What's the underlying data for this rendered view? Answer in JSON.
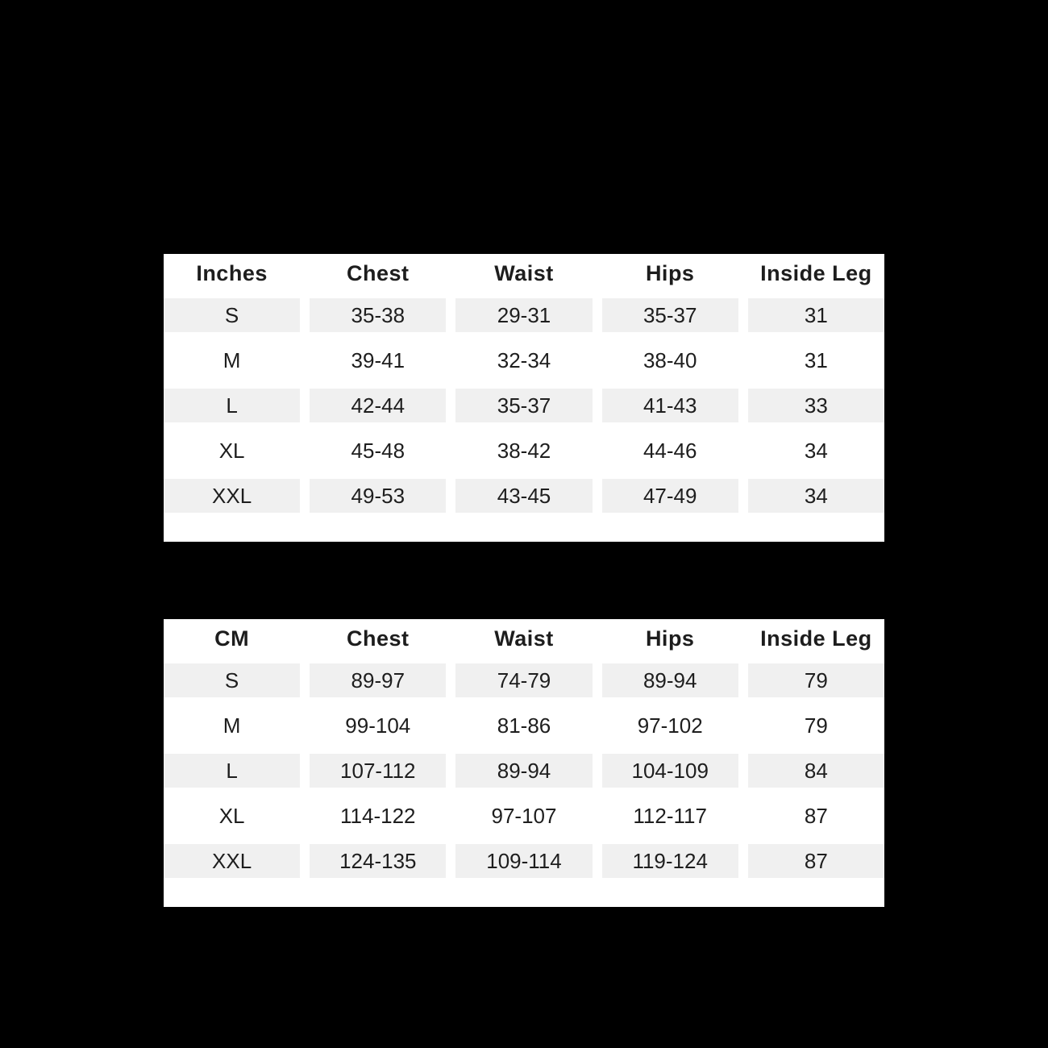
{
  "colors": {
    "page_background": "#000000",
    "table_background": "#ffffff",
    "stripe": "#f0f0f0",
    "text": "#1e1e1e"
  },
  "tables": [
    {
      "unit": "Inches",
      "headers": [
        "Inches",
        "Chest",
        "Waist",
        "Hips",
        "Inside Leg"
      ],
      "rows": [
        {
          "size": "S",
          "chest": "35-38",
          "waist": "29-31",
          "hips": "35-37",
          "inside_leg": "31"
        },
        {
          "size": "M",
          "chest": "39-41",
          "waist": "32-34",
          "hips": "38-40",
          "inside_leg": "31"
        },
        {
          "size": "L",
          "chest": "42-44",
          "waist": "35-37",
          "hips": "41-43",
          "inside_leg": "33"
        },
        {
          "size": "XL",
          "chest": "45-48",
          "waist": "38-42",
          "hips": "44-46",
          "inside_leg": "34"
        },
        {
          "size": "XXL",
          "chest": "49-53",
          "waist": "43-45",
          "hips": "47-49",
          "inside_leg": "34"
        }
      ]
    },
    {
      "unit": "CM",
      "headers": [
        "CM",
        "Chest",
        "Waist",
        "Hips",
        "Inside Leg"
      ],
      "rows": [
        {
          "size": "S",
          "chest": "89-97",
          "waist": "74-79",
          "hips": "89-94",
          "inside_leg": "79"
        },
        {
          "size": "M",
          "chest": "99-104",
          "waist": "81-86",
          "hips": "97-102",
          "inside_leg": "79"
        },
        {
          "size": "L",
          "chest": "107-112",
          "waist": "89-94",
          "hips": "104-109",
          "inside_leg": "84"
        },
        {
          "size": "XL",
          "chest": "114-122",
          "waist": "97-107",
          "hips": "112-117",
          "inside_leg": "87"
        },
        {
          "size": "XXL",
          "chest": "124-135",
          "waist": "109-114",
          "hips": "119-124",
          "inside_leg": "87"
        }
      ]
    }
  ],
  "chart_data": [
    {
      "type": "table",
      "title": "Size chart (Inches)",
      "columns": [
        "Inches",
        "Chest",
        "Waist",
        "Hips",
        "Inside Leg"
      ],
      "rows": [
        [
          "S",
          "35-38",
          "29-31",
          "35-37",
          "31"
        ],
        [
          "M",
          "39-41",
          "32-34",
          "38-40",
          "31"
        ],
        [
          "L",
          "42-44",
          "35-37",
          "41-43",
          "33"
        ],
        [
          "XL",
          "45-48",
          "38-42",
          "44-46",
          "34"
        ],
        [
          "XXL",
          "49-53",
          "43-45",
          "47-49",
          "34"
        ]
      ]
    },
    {
      "type": "table",
      "title": "Size chart (CM)",
      "columns": [
        "CM",
        "Chest",
        "Waist",
        "Hips",
        "Inside Leg"
      ],
      "rows": [
        [
          "S",
          "89-97",
          "74-79",
          "89-94",
          "79"
        ],
        [
          "M",
          "99-104",
          "81-86",
          "97-102",
          "79"
        ],
        [
          "L",
          "107-112",
          "89-94",
          "104-109",
          "84"
        ],
        [
          "XL",
          "114-122",
          "97-107",
          "112-117",
          "87"
        ],
        [
          "XXL",
          "124-135",
          "109-114",
          "119-124",
          "87"
        ]
      ]
    }
  ]
}
